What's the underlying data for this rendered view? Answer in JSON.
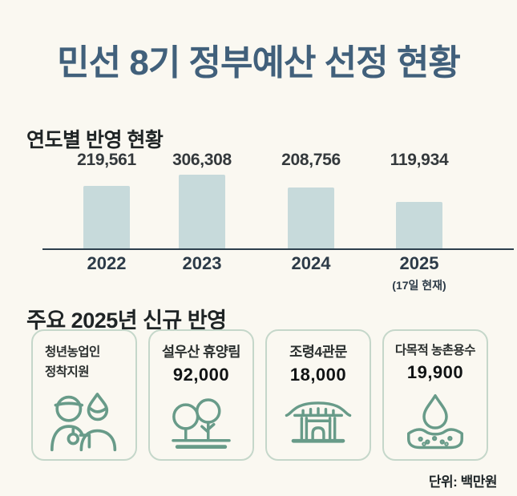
{
  "page": {
    "title": "민선 8기 정부예산 선정 현황",
    "unit_label": "단위: 백만원"
  },
  "yearly_section": {
    "heading": "연도별 반영 현황"
  },
  "chart_data": {
    "type": "bar",
    "title": "연도별 반영 현황",
    "categories": [
      "2022",
      "2023",
      "2024",
      "2025"
    ],
    "values": [
      219561,
      306308,
      208756,
      119934
    ],
    "value_labels": [
      "219,561",
      "306,308",
      "208,756",
      "119,934"
    ],
    "note_for_2025": "(17일 현재)",
    "unit": "백만원",
    "xlabel": "",
    "ylabel": "",
    "legend": "none",
    "grid": "off",
    "bar_color": "#c7dadb",
    "axis_color": "#2d3f4d"
  },
  "new_section": {
    "heading": "주요 2025년 신규 반영",
    "cards": [
      {
        "icon": "farmer-icon",
        "title_lines": [
          "청년농업인",
          "정착지원"
        ],
        "value": ""
      },
      {
        "icon": "trees-icon",
        "title_lines": [
          "설우산 휴양림"
        ],
        "value": "92,000"
      },
      {
        "icon": "gate-icon",
        "title_lines": [
          "조령4관문"
        ],
        "value": "18,000"
      },
      {
        "icon": "water-drop-icon",
        "title_lines": [
          "다목적 농촌용수"
        ],
        "value": "19,900"
      }
    ]
  },
  "colors": {
    "background": "#faf8f1",
    "title_text": "#41607b",
    "heading_text": "#1f2425",
    "bar_fill": "#c7dadb",
    "axis_line": "#2d3f4d",
    "value_text": "#34393c",
    "year_text": "#2d3b48",
    "card_border": "#c5d7ca",
    "icon_stroke": "#689b89",
    "unit_text": "#1e2527"
  }
}
